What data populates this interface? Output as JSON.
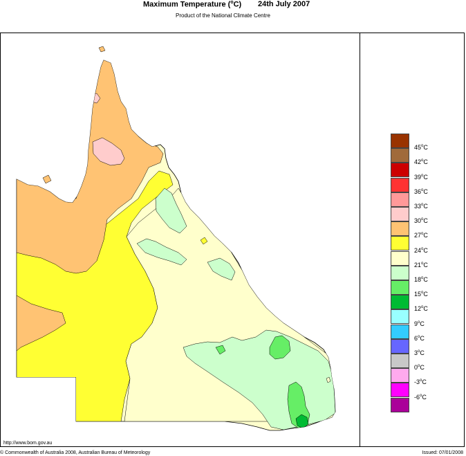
{
  "header": {
    "title": "Maximum Temperature (",
    "title_degree": "o",
    "title_unit": "C)",
    "date": "24th July 2007",
    "subtitle": "Product of the National Climate Centre"
  },
  "legend": {
    "items": [
      {
        "label": "45",
        "color": "#993300"
      },
      {
        "label": "42",
        "color": "#a06a3a"
      },
      {
        "label": "39",
        "color": "#cc0000"
      },
      {
        "label": "36",
        "color": "#ff3333"
      },
      {
        "label": "33",
        "color": "#ff9999"
      },
      {
        "label": "30",
        "color": "#ffcccc"
      },
      {
        "label": "27",
        "color": "#ffc373"
      },
      {
        "label": "24",
        "color": "#ffff33"
      },
      {
        "label": "21",
        "color": "#ffffcc"
      },
      {
        "label": "18",
        "color": "#ccffcc"
      },
      {
        "label": "15",
        "color": "#66ee66"
      },
      {
        "label": "12",
        "color": "#00bb33"
      },
      {
        "label": "9",
        "color": "#99ffff"
      },
      {
        "label": "6",
        "color": "#33ccff"
      },
      {
        "label": "3",
        "color": "#6666ff"
      },
      {
        "label": "0",
        "color": "#c8c8c8"
      },
      {
        "label": "-3",
        "color": "#ffaaee"
      },
      {
        "label": "-6",
        "color": "#ff00ff"
      },
      {
        "label": "",
        "color": "#aa0099"
      }
    ],
    "degree": "o",
    "unit": "C"
  },
  "footer": {
    "url": "http://www.bom.gov.au",
    "copyright": "© Commonwealth of Australia 2008, Australian Bureau of Meteorology",
    "issued": "Issued: 07/01/2008"
  },
  "colors": {
    "c30": "#ffc373",
    "c33": "#ffcccc",
    "c27": "#ffff33",
    "c24": "#ffffcc",
    "c21": "#ccffcc",
    "c18": "#66ee66",
    "c15": "#00bb33"
  }
}
